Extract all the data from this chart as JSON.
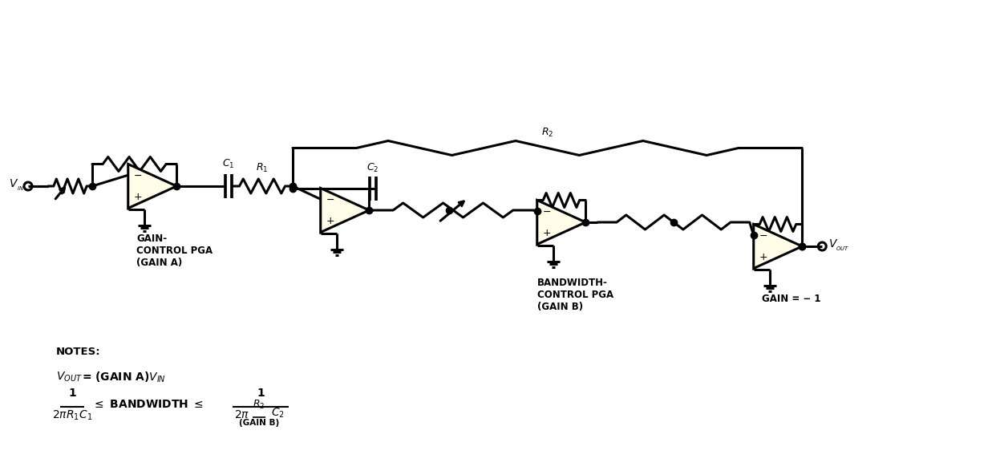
{
  "bg_color": "#ffffff",
  "line_color": "#000000",
  "op_amp_fill": "#fffde7",
  "line_width": 2.2,
  "dot_size": 6,
  "fig_width": 12.42,
  "fig_height": 5.92,
  "labels": {
    "vin": "V",
    "vin_sub": "IN",
    "vout": "V",
    "vout_sub": "OUT",
    "R1": "R",
    "R1_sub": "1",
    "R2": "R",
    "R2_sub": "2",
    "C1": "C",
    "C1_sub": "1",
    "C2": "C",
    "C2_sub": "2",
    "label1_line1": "GAIN-",
    "label1_line2": "CONTROL PGA",
    "label1_line3": "(GAIN A)",
    "label2_line1": "BANDWIDTH-",
    "label2_line2": "CONTROL PGA",
    "label2_line3": "(GAIN B)",
    "label3": "GAIN = − 1",
    "notes": "NOTES:",
    "eq1_left": "V",
    "eq1_left_sub": "OUT",
    "eq1_right": " = (GAIN A)V",
    "eq1_right_sub": "IN",
    "eq2_num": "1",
    "eq2_denom": "2πR",
    "eq2_denom_sub": "1",
    "eq2_denom2": "C",
    "eq2_denom2_sub": "1",
    "eq2_mid": "≤ BANDWIDTH ≤",
    "eq3_num": "1",
    "eq3_denom_prefix": "2π",
    "eq3_frac_num": "R",
    "eq3_frac_num_sub": "2",
    "eq3_frac_denom": "(GAIN B)",
    "eq3_denom_suffix": "C",
    "eq3_denom_suffix_sub": "2"
  }
}
